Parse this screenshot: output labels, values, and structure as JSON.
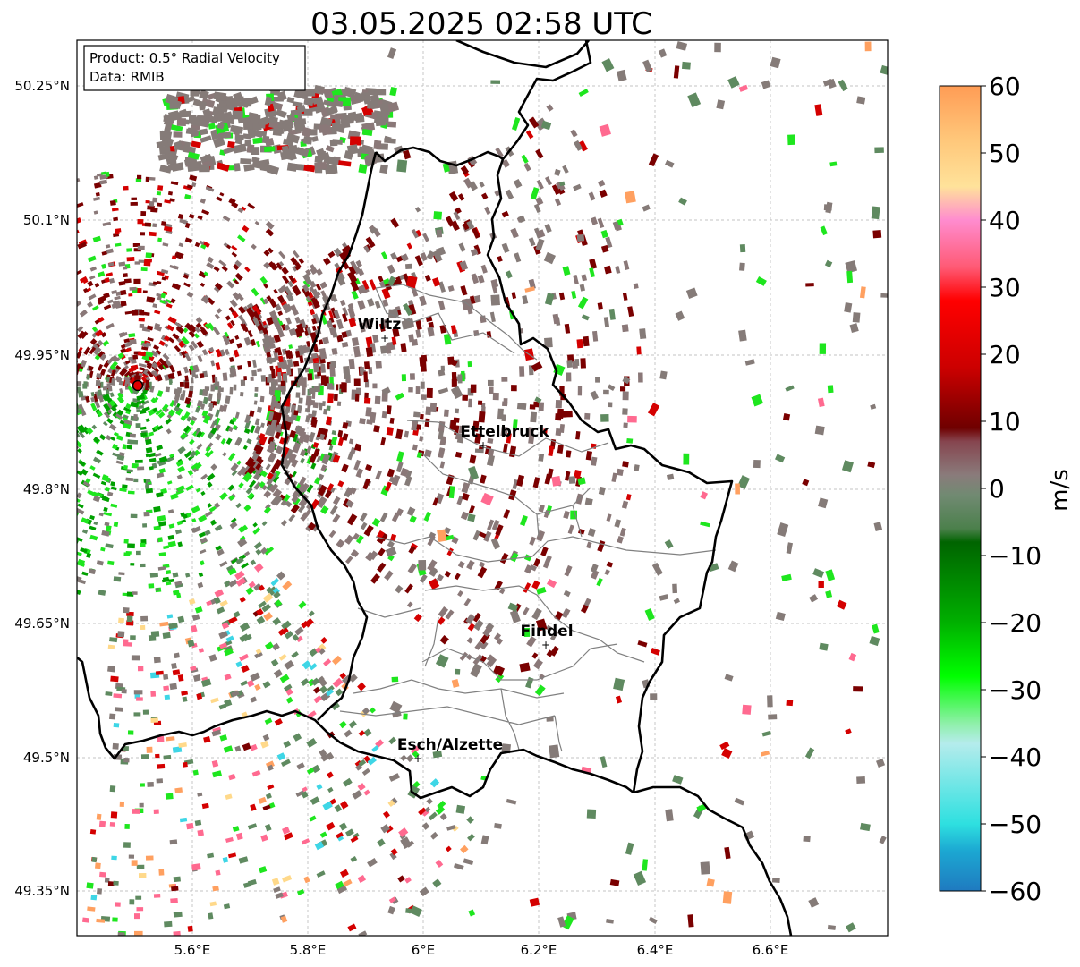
{
  "title": "03.05.2025 02:58 UTC",
  "info_box": {
    "product_line": "Product: 0.5° Radial Velocity",
    "data_line": "Data: RMIB"
  },
  "lat_labels": [
    "50.25°N",
    "50.1°N",
    "49.95°N",
    "49.8°N",
    "49.65°N",
    "49.5°N",
    "49.35°N"
  ],
  "lon_labels": [
    "5.6°E",
    "5.8°E",
    "6°E",
    "6.2°E",
    "6.4°E",
    "6.6°E"
  ],
  "cities": [
    {
      "name": "Wiltz"
    },
    {
      "name": "Ettelbruck"
    },
    {
      "name": "Findel"
    },
    {
      "name": "Esch/Alzette"
    }
  ],
  "radar_site_marker": "red-circle",
  "colorbar": {
    "label": "m/s",
    "ticks": [
      "60",
      "50",
      "40",
      "30",
      "20",
      "10",
      "0",
      "−10",
      "−20",
      "−30",
      "−40",
      "−50",
      "−60"
    ],
    "min": -60,
    "max": 60,
    "stops": [
      {
        "v": 60,
        "c": "#ff9c55"
      },
      {
        "v": 52,
        "c": "#ffc77a"
      },
      {
        "v": 45,
        "c": "#ffe29a"
      },
      {
        "v": 40,
        "c": "#ff8ccf"
      },
      {
        "v": 33,
        "c": "#ff5a75"
      },
      {
        "v": 28,
        "c": "#ff0000"
      },
      {
        "v": 18,
        "c": "#cc0000"
      },
      {
        "v": 9,
        "c": "#6f0000"
      },
      {
        "v": 7,
        "c": "#86454f"
      },
      {
        "v": 2,
        "c": "#8a7b7b"
      },
      {
        "v": -1,
        "c": "#718a72"
      },
      {
        "v": -6,
        "c": "#4c804c"
      },
      {
        "v": -8,
        "c": "#006400"
      },
      {
        "v": -20,
        "c": "#00b000"
      },
      {
        "v": -28,
        "c": "#00ff00"
      },
      {
        "v": -35,
        "c": "#8ef0a8"
      },
      {
        "v": -38,
        "c": "#b5ecec"
      },
      {
        "v": -50,
        "c": "#2ee0e0"
      },
      {
        "v": -54,
        "c": "#1ca8d2"
      },
      {
        "v": -60,
        "c": "#1f7ac0"
      }
    ]
  },
  "colors": {
    "grey_pos": "#8a7878",
    "grey_neu": "#857b78",
    "green_dark": "#5f8a60",
    "dark_red": "#7a0000",
    "red": "#d40000",
    "bright_green": "#1ee61e",
    "green": "#00a000",
    "pink": "#ff6a90",
    "cyan": "#3ed6e6",
    "orange": "#ffa060",
    "yellow": "#ffd98a",
    "blue": "#1f84c0",
    "radar_red": "#e00000"
  }
}
